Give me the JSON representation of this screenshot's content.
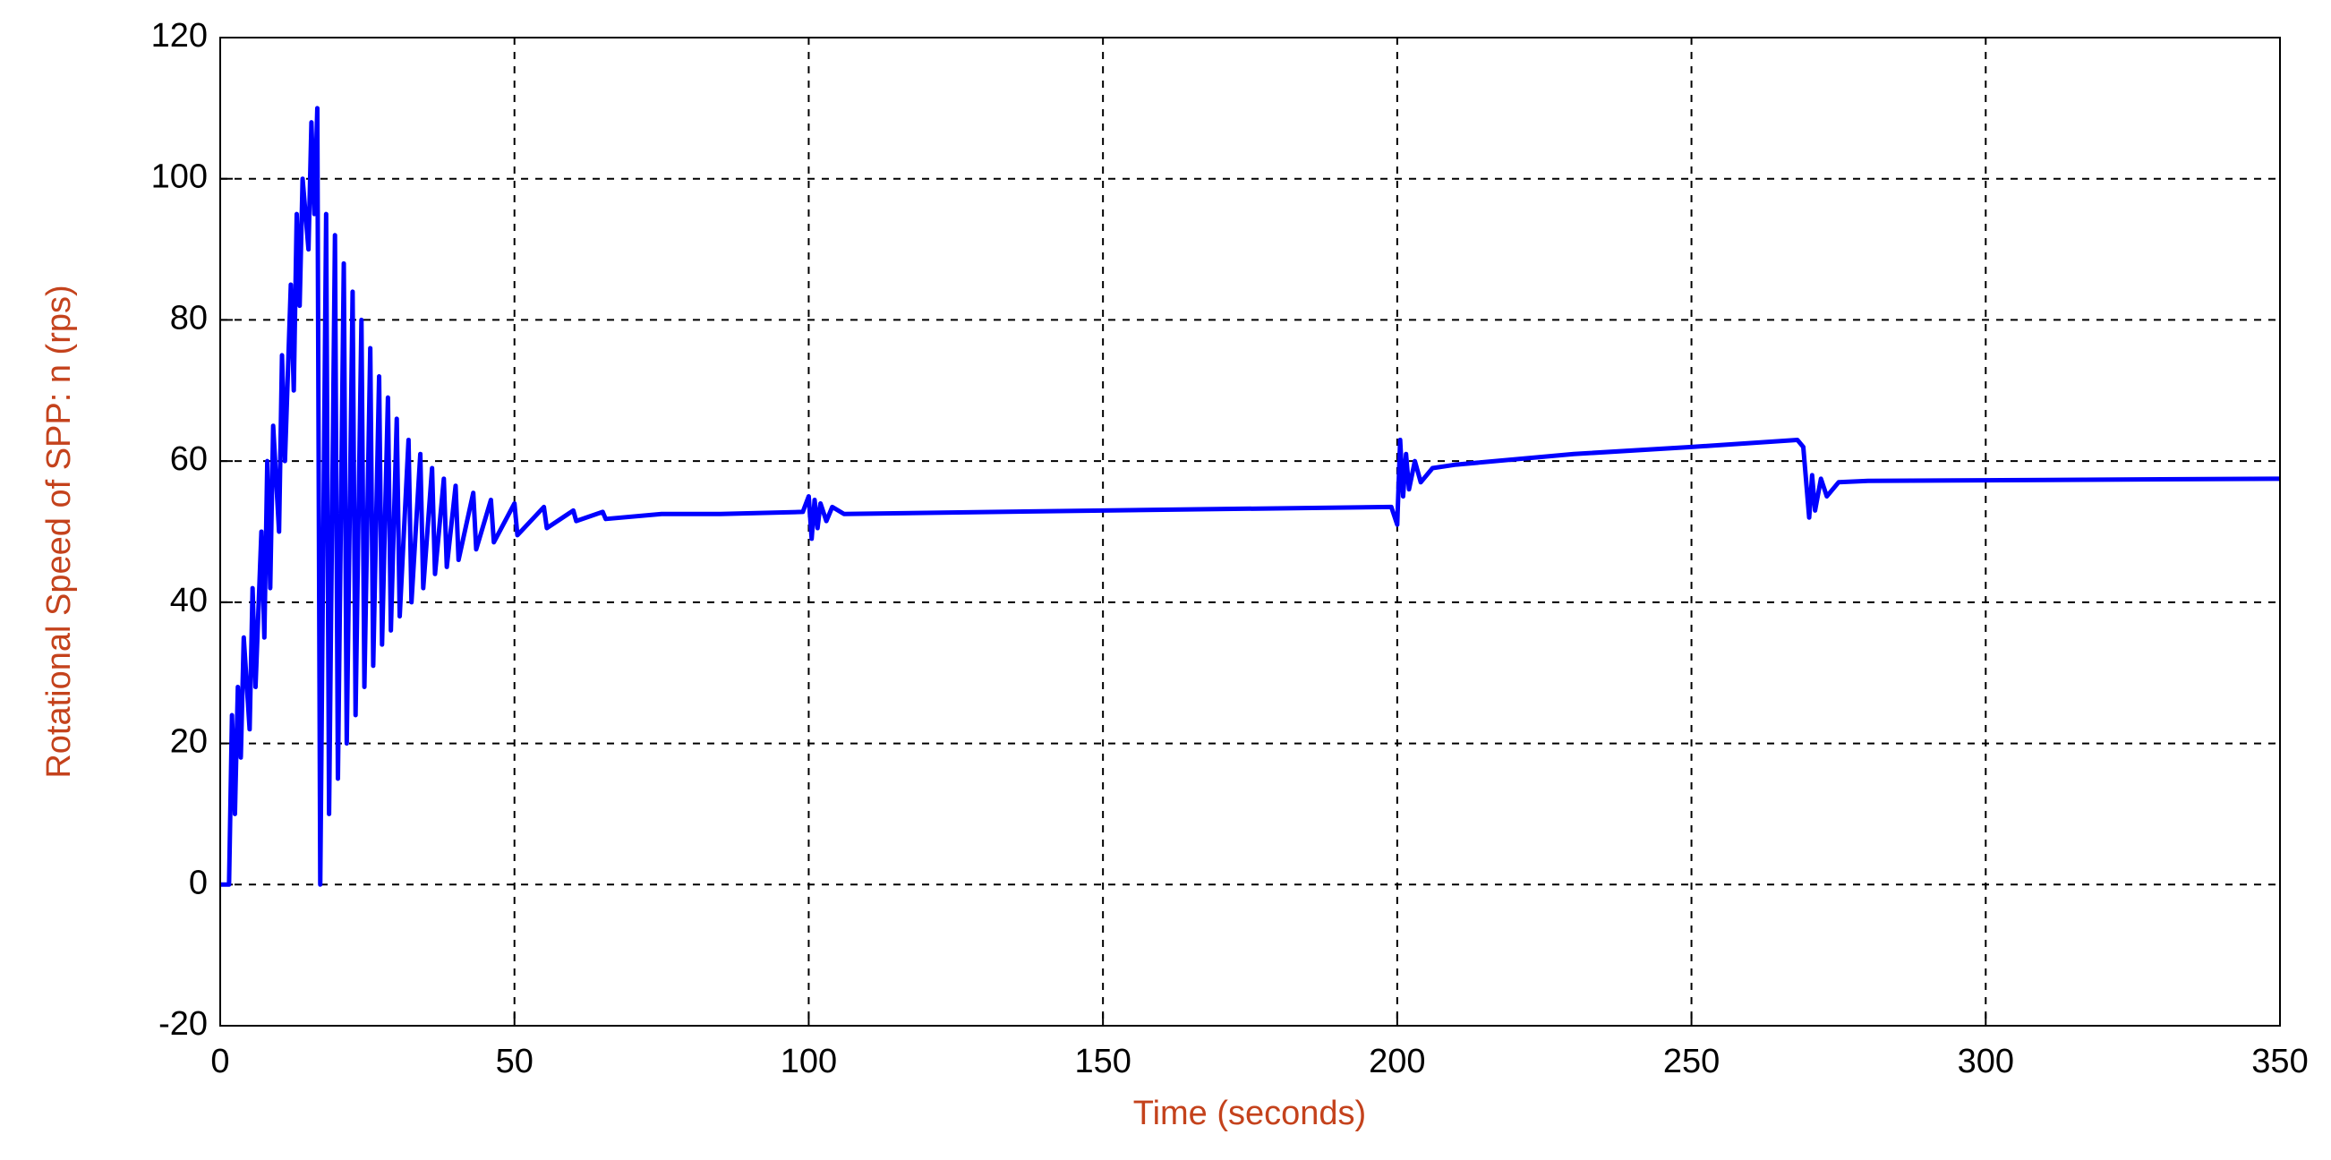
{
  "chart_data": {
    "type": "line",
    "xlabel": "Time (seconds)",
    "ylabel": "Rotational Speed of SPP: n (rps)",
    "x": [
      0,
      1.5,
      2,
      2.5,
      3,
      3.5,
      4,
      5,
      5.5,
      6,
      7,
      7.5,
      8,
      8.5,
      9,
      10,
      10.5,
      11,
      12,
      12.5,
      13,
      13.5,
      14,
      15,
      15.5,
      16,
      16.5,
      17,
      18,
      18.5,
      19.5,
      20,
      21,
      21.5,
      22.5,
      23,
      24,
      24.5,
      25.5,
      26,
      27,
      27.5,
      28.5,
      29,
      30,
      30.5,
      32,
      32.5,
      34,
      34.5,
      36,
      36.5,
      38,
      38.5,
      40,
      40.5,
      43,
      43.5,
      46,
      46.5,
      50,
      50.5,
      55,
      55.5,
      60,
      60.5,
      65,
      65.5,
      75,
      85,
      99,
      100,
      100.5,
      101,
      101.5,
      102,
      103,
      104,
      106,
      150,
      199,
      200,
      200.5,
      201,
      201.5,
      202,
      203,
      204,
      206,
      210,
      230,
      250,
      268,
      269,
      270,
      270.5,
      271,
      272,
      273,
      275,
      280,
      350
    ],
    "series": [
      {
        "name": "n",
        "color": "#0000ff",
        "values": [
          0,
          0,
          24,
          10,
          28,
          18,
          35,
          22,
          42,
          28,
          50,
          35,
          60,
          42,
          65,
          50,
          75,
          60,
          85,
          70,
          95,
          82,
          100,
          90,
          108,
          95,
          110,
          0,
          95,
          10,
          92,
          15,
          88,
          20,
          84,
          24,
          80,
          28,
          76,
          31,
          72,
          34,
          69,
          36,
          66,
          38,
          63,
          40,
          61,
          42,
          59,
          44,
          57.5,
          45,
          56.5,
          46,
          55.5,
          47.5,
          54.5,
          48.5,
          54,
          49.5,
          53.5,
          50.5,
          53,
          51.5,
          52.8,
          51.8,
          52.5,
          52.5,
          52.8,
          55,
          49,
          54.5,
          50.5,
          54,
          51.5,
          53.5,
          52.5,
          53,
          53.5,
          51,
          63,
          55,
          61,
          56,
          60,
          57,
          59,
          59.5,
          61,
          62,
          63,
          62,
          52,
          58,
          53,
          57.5,
          55,
          57,
          57.2,
          57.5
        ]
      }
    ],
    "xlim": [
      0,
      350
    ],
    "xticks": [
      0,
      50,
      100,
      150,
      200,
      250,
      300,
      350
    ],
    "ylim": [
      -20,
      120
    ],
    "yticks": [
      -20,
      0,
      20,
      40,
      60,
      80,
      100,
      120
    ],
    "grid": true
  }
}
